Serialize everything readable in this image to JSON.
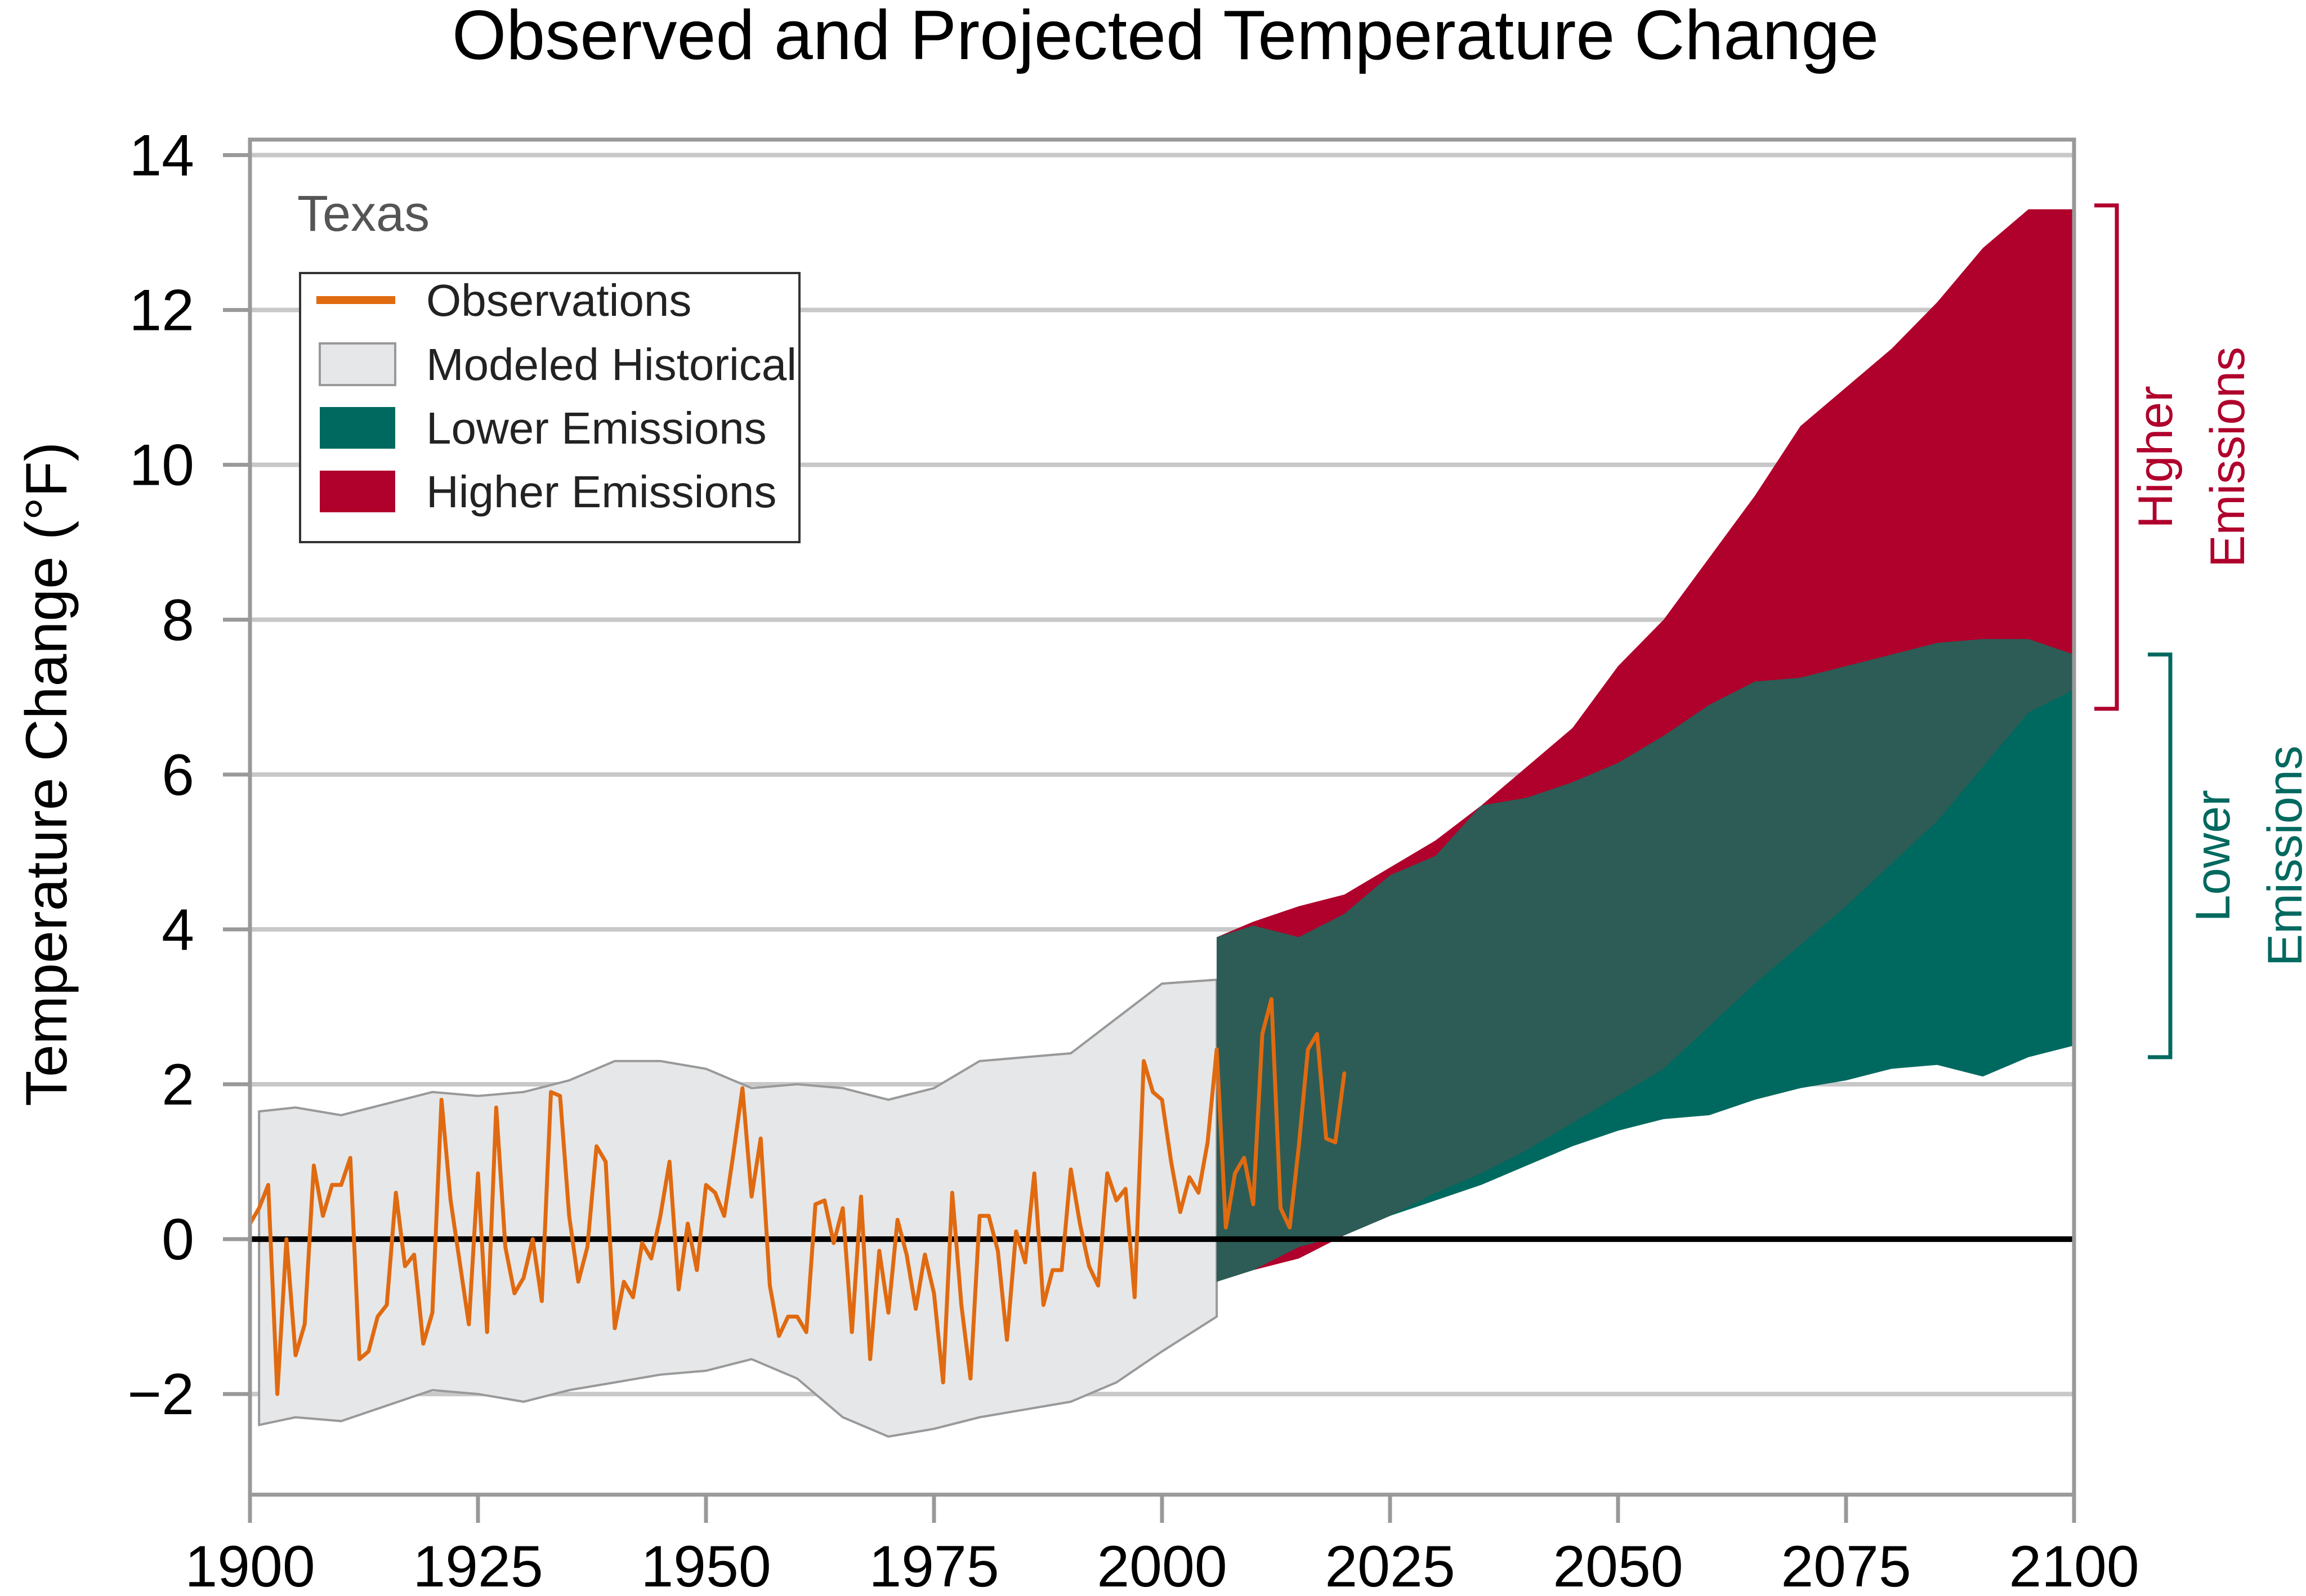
{
  "chart_data": {
    "type": "area",
    "title": "Observed and Projected Temperature Change",
    "xlabel": "",
    "ylabel": "Temperature Change (°F)",
    "xlim": [
      1900,
      2100
    ],
    "ylim": [
      -3.3,
      14.2
    ],
    "x_ticks": [
      1900,
      1925,
      1950,
      1975,
      2000,
      2025,
      2050,
      2075,
      2100
    ],
    "x_tick_labels": [
      "1900",
      "1925",
      "1950",
      "1975",
      "2000",
      "2025",
      "2050",
      "2075",
      "2100"
    ],
    "y_ticks": [
      -2,
      0,
      2,
      4,
      6,
      8,
      10,
      12,
      14
    ],
    "y_tick_labels": [
      "−2",
      "0",
      "2",
      "4",
      "6",
      "8",
      "10",
      "12",
      "14"
    ],
    "grid": "horizontal",
    "region_label": "Texas",
    "legend": {
      "placement": "top-left",
      "entries": [
        {
          "label": "Observations",
          "color": "#E06A10"
        },
        {
          "label": "Modeled Historical",
          "color": "#E6E7E8"
        },
        {
          "label": "Lower Emissions",
          "color": "#00695F"
        },
        {
          "label": "Higher Emissions",
          "color": "#B0002C"
        }
      ]
    },
    "colors": {
      "observations": "#E06A10",
      "modeled_historical_fill": "#E6E7E8",
      "modeled_historical_edge": "#999999",
      "lower_emissions": "#00695F",
      "higher_emissions": "#B0002C",
      "overlap": "#2C5C55",
      "zero_line": "#000000",
      "grid": "#C8C8C8",
      "frame": "#999999"
    },
    "series": [
      {
        "name": "Observations",
        "x": [
          1900,
          1901,
          1902,
          1903,
          1904,
          1905,
          1906,
          1907,
          1908,
          1909,
          1910,
          1911,
          1912,
          1913,
          1914,
          1915,
          1916,
          1917,
          1918,
          1919,
          1920,
          1921,
          1922,
          1923,
          1924,
          1925,
          1926,
          1927,
          1928,
          1929,
          1930,
          1931,
          1932,
          1933,
          1934,
          1935,
          1936,
          1937,
          1938,
          1939,
          1940,
          1941,
          1942,
          1943,
          1944,
          1945,
          1946,
          1947,
          1948,
          1949,
          1950,
          1951,
          1952,
          1953,
          1954,
          1955,
          1956,
          1957,
          1958,
          1959,
          1960,
          1961,
          1962,
          1963,
          1964,
          1965,
          1966,
          1967,
          1968,
          1969,
          1970,
          1971,
          1972,
          1973,
          1974,
          1975,
          1976,
          1977,
          1978,
          1979,
          1980,
          1981,
          1982,
          1983,
          1984,
          1985,
          1986,
          1987,
          1988,
          1989,
          1990,
          1991,
          1992,
          1993,
          1994,
          1995,
          1996,
          1997,
          1998,
          1999,
          2000,
          2001,
          2002,
          2003,
          2004,
          2005,
          2006,
          2007,
          2008,
          2009,
          2010,
          2011,
          2012,
          2013,
          2014,
          2015,
          2016,
          2017,
          2018,
          2019,
          2020
        ],
        "y": [
          0.2,
          0.4,
          0.7,
          -2.0,
          0.0,
          -1.5,
          -1.1,
          0.95,
          0.3,
          0.7,
          0.7,
          1.05,
          -1.55,
          -1.45,
          -1.0,
          -0.85,
          0.6,
          -0.35,
          -0.2,
          -1.35,
          -0.95,
          1.8,
          0.5,
          -0.3,
          -1.1,
          0.85,
          -1.2,
          1.7,
          -0.1,
          -0.7,
          -0.5,
          0.0,
          -0.8,
          1.9,
          1.85,
          0.3,
          -0.55,
          -0.1,
          1.2,
          1.0,
          -1.15,
          -0.55,
          -0.75,
          -0.05,
          -0.25,
          0.3,
          1.0,
          -0.65,
          0.2,
          -0.4,
          0.7,
          0.6,
          0.3,
          1.1,
          1.95,
          0.55,
          1.3,
          -0.6,
          -1.25,
          -1.0,
          -1.0,
          -1.2,
          0.45,
          0.5,
          -0.05,
          0.4,
          -1.2,
          0.55,
          -1.55,
          -0.15,
          -0.95,
          0.25,
          -0.2,
          -0.9,
          -0.2,
          -0.7,
          -1.85,
          0.6,
          -0.85,
          -1.8,
          0.3,
          0.3,
          -0.15,
          -1.3,
          0.1,
          -0.3,
          0.85,
          -0.85,
          -0.4,
          -0.4,
          0.9,
          0.2,
          -0.35,
          -0.6,
          0.85,
          0.5,
          0.65,
          -0.75,
          2.3,
          1.9,
          1.8,
          1.0,
          0.35,
          0.8,
          0.6,
          1.25,
          2.45,
          0.15,
          0.85,
          1.05,
          0.45,
          2.65,
          3.1,
          0.4,
          0.15,
          1.2,
          2.45,
          2.65,
          1.3,
          1.25,
          2.15
        ]
      },
      {
        "name": "Modeled Historical",
        "x": [
          1901,
          1905,
          1910,
          1915,
          1920,
          1925,
          1930,
          1935,
          1940,
          1945,
          1950,
          1955,
          1960,
          1965,
          1970,
          1975,
          1980,
          1985,
          1990,
          1995,
          2000,
          2006
        ],
        "upper": [
          1.65,
          1.7,
          1.6,
          1.75,
          1.9,
          1.85,
          1.9,
          2.05,
          2.3,
          2.3,
          2.2,
          1.95,
          2.0,
          1.95,
          1.8,
          1.95,
          2.3,
          2.35,
          2.4,
          2.85,
          3.3,
          3.35
        ],
        "lower": [
          -2.4,
          -2.3,
          -2.35,
          -2.15,
          -1.95,
          -2.0,
          -2.1,
          -1.95,
          -1.85,
          -1.75,
          -1.7,
          -1.55,
          -1.8,
          -2.3,
          -2.55,
          -2.45,
          -2.3,
          -2.2,
          -2.1,
          -1.85,
          -1.45,
          -1.0
        ]
      },
      {
        "name": "Lower Emissions",
        "x": [
          2006,
          2010,
          2015,
          2020,
          2025,
          2030,
          2035,
          2040,
          2045,
          2050,
          2055,
          2060,
          2065,
          2070,
          2075,
          2080,
          2085,
          2090,
          2095,
          2100
        ],
        "upper": [
          3.9,
          4.05,
          3.9,
          4.2,
          4.7,
          4.95,
          5.6,
          5.7,
          5.9,
          6.15,
          6.5,
          6.9,
          7.2,
          7.25,
          7.4,
          7.55,
          7.7,
          7.75,
          7.75,
          7.55
        ],
        "lower": [
          -0.55,
          -0.4,
          -0.1,
          0.05,
          0.3,
          0.5,
          0.7,
          0.95,
          1.2,
          1.4,
          1.55,
          1.6,
          1.8,
          1.95,
          2.05,
          2.2,
          2.25,
          2.1,
          2.35,
          2.5
        ]
      },
      {
        "name": "Higher Emissions",
        "x": [
          2006,
          2010,
          2015,
          2020,
          2025,
          2030,
          2035,
          2040,
          2045,
          2050,
          2055,
          2060,
          2065,
          2070,
          2075,
          2080,
          2085,
          2090,
          2095,
          2100
        ],
        "upper": [
          3.9,
          4.1,
          4.3,
          4.45,
          4.8,
          5.15,
          5.6,
          6.1,
          6.6,
          7.4,
          8.0,
          8.8,
          9.6,
          10.5,
          11.0,
          11.5,
          12.1,
          12.8,
          13.3,
          13.3
        ],
        "lower": [
          -0.55,
          -0.4,
          -0.25,
          0.05,
          0.3,
          0.6,
          0.85,
          1.15,
          1.5,
          1.85,
          2.2,
          2.75,
          3.3,
          3.8,
          4.3,
          4.85,
          5.4,
          6.1,
          6.8,
          7.1
        ]
      }
    ],
    "brackets": [
      {
        "label_lines": [
          "Higher",
          "Emissions"
        ],
        "range": [
          6.85,
          13.35
        ],
        "color": "#B0002C"
      },
      {
        "label_lines": [
          "Lower",
          "Emissions"
        ],
        "range": [
          2.35,
          7.55
        ],
        "color": "#00695F"
      }
    ]
  }
}
